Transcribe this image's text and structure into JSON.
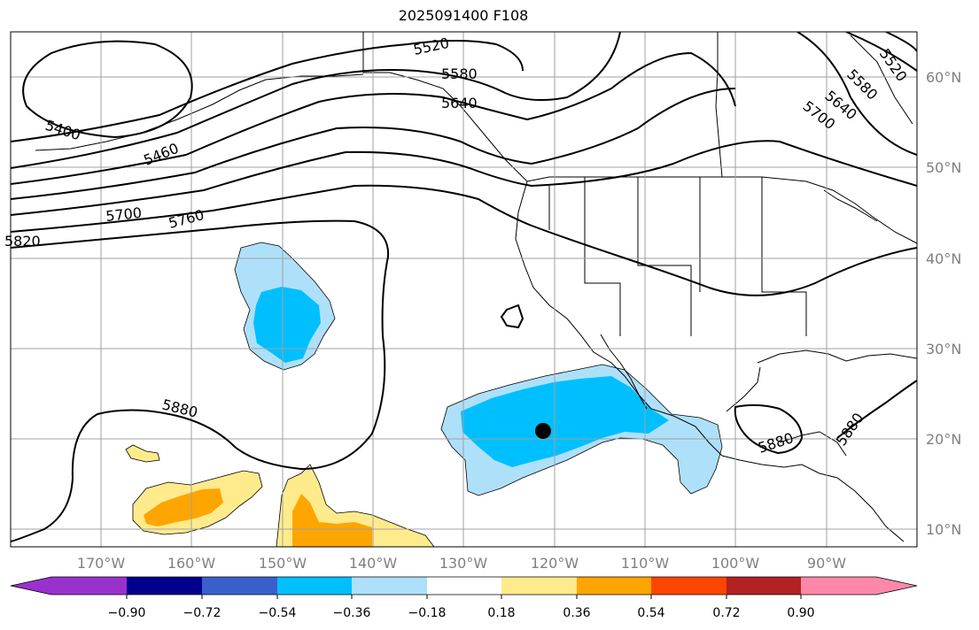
{
  "title": "2025091400 F108",
  "map": {
    "lon_range": [
      -180,
      -80
    ],
    "lat_range": [
      8,
      65
    ],
    "grid": true,
    "lon_ticks": [
      -170,
      -160,
      -150,
      -140,
      -130,
      -120,
      -110,
      -100,
      -90
    ],
    "lon_tick_labels": [
      "170°W",
      "160°W",
      "150°W",
      "140°W",
      "130°W",
      "120°W",
      "110°W",
      "100°W",
      "90°W"
    ],
    "lat_ticks": [
      10,
      20,
      30,
      40,
      50,
      60
    ],
    "lat_tick_labels": [
      "10°N",
      "20°N",
      "30°N",
      "40°N",
      "50°N",
      "60°N"
    ],
    "marker": {
      "lon": -121.2,
      "lat": 20.8,
      "shape": "filled-circle",
      "color": "#000000"
    }
  },
  "contour_labels": [
    "5520",
    "5580",
    "5640",
    "5400",
    "5460",
    "5700",
    "5760",
    "5820",
    "5880",
    "5880",
    "5880",
    "5520",
    "5580",
    "5640",
    "5700"
  ],
  "colorbar": {
    "colors": [
      "#9932cc",
      "#00008b",
      "#3a5fcd",
      "#00bfff",
      "#aee0fa",
      "#ffffff",
      "#ffeb8c",
      "#ffa500",
      "#ff4500",
      "#b22222",
      "#ff88aa"
    ],
    "tick_labels": [
      "−0.90",
      "−0.72",
      "−0.54",
      "−0.36",
      "−0.18",
      "0.18",
      "0.36",
      "0.54",
      "0.72",
      "0.90"
    ],
    "extend": "both"
  }
}
